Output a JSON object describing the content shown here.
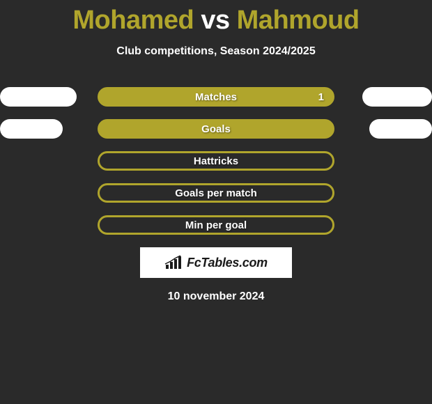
{
  "title": {
    "player1": "Mohamed",
    "vs": "vs",
    "player2": "Mahmoud",
    "player1_color": "#b0a52c",
    "vs_color": "#ffffff",
    "player2_color": "#b0a52c"
  },
  "subtitle": "Club competitions, Season 2024/2025",
  "stats": [
    {
      "label": "Matches",
      "value_right": "1",
      "fill_color": "#b0a52c",
      "border_color": "#b0a52c",
      "show_left_pill": true,
      "show_right_pill": true,
      "left_pill_width": 110,
      "right_pill_width": 100
    },
    {
      "label": "Goals",
      "value_right": "",
      "fill_color": "#b0a52c",
      "border_color": "#b0a52c",
      "show_left_pill": true,
      "show_right_pill": true,
      "left_pill_width": 90,
      "right_pill_width": 90
    },
    {
      "label": "Hattricks",
      "value_right": "",
      "fill_color": "transparent",
      "border_color": "#b0a52c",
      "show_left_pill": false,
      "show_right_pill": false
    },
    {
      "label": "Goals per match",
      "value_right": "",
      "fill_color": "transparent",
      "border_color": "#b0a52c",
      "show_left_pill": false,
      "show_right_pill": false
    },
    {
      "label": "Min per goal",
      "value_right": "",
      "fill_color": "transparent",
      "border_color": "#b0a52c",
      "show_left_pill": false,
      "show_right_pill": false
    }
  ],
  "logo_text": "FcTables.com",
  "date": "10 november 2024",
  "background_color": "#2a2a2a",
  "side_pill_color": "#ffffff"
}
